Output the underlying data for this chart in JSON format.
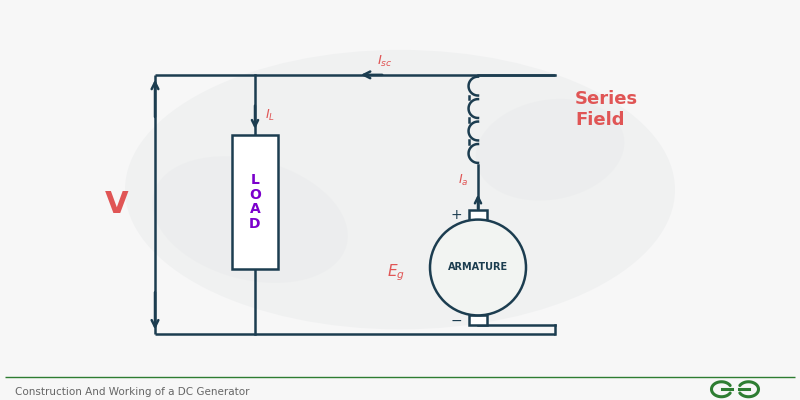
{
  "bg_color": "#f7f7f7",
  "circuit_color": "#1c3d50",
  "label_color": "#e05555",
  "load_text_color": "#7b00cc",
  "title_text": "Construction And Working of a DC Generator",
  "title_color": "#666666",
  "series_field_text": "Series\nField",
  "armature_text": "ARMATURE",
  "load_text": "L\nO\nA\nD",
  "V_label": "V",
  "logo_color": "#2e7d32",
  "line_width": 1.8,
  "footer_line_color": "#2e7d32",
  "figsize": [
    8.0,
    4.0
  ],
  "dpi": 100,
  "xlim": [
    0,
    8
  ],
  "ylim": [
    0,
    4
  ]
}
